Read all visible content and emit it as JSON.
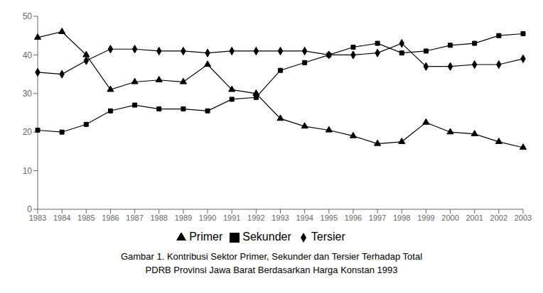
{
  "chart_data": {
    "type": "line",
    "title": "Gambar 1. Kontribusi Sektor Primer, Sekunder dan Tersier Terhadap Total",
    "subtitle": "PDRB Provinsi Jawa Barat Berdasarkan Harga Konstan 1993",
    "categories": [
      "1983",
      "1984",
      "1985",
      "1986",
      "1987",
      "1988",
      "1989",
      "1990",
      "1991",
      "1992",
      "1993",
      "1994",
      "1995",
      "1996",
      "1997",
      "1998",
      "1999",
      "2000",
      "2001",
      "2002",
      "2003"
    ],
    "series": [
      {
        "name": "Primer",
        "color": "#000000",
        "marker": "triangle",
        "values": [
          44.5,
          46.0,
          40.0,
          31.0,
          33.0,
          33.5,
          33.0,
          37.5,
          31.0,
          30.0,
          23.5,
          21.5,
          20.5,
          19.0,
          17.0,
          17.5,
          22.5,
          20.0,
          19.5,
          17.5,
          16.0
        ]
      },
      {
        "name": "Sekunder",
        "color": "#000000",
        "marker": "square",
        "values": [
          20.5,
          20.0,
          22.0,
          25.5,
          27.0,
          26.0,
          26.0,
          25.5,
          28.5,
          29.0,
          36.0,
          38.0,
          40.0,
          42.0,
          43.0,
          40.5,
          41.0,
          42.5,
          43.0,
          45.0,
          45.5
        ]
      },
      {
        "name": "Tersier",
        "color": "#000000",
        "marker": "diamond",
        "values": [
          35.5,
          35.0,
          38.5,
          41.5,
          41.5,
          41.0,
          41.0,
          40.5,
          41.0,
          41.0,
          41.0,
          41.0,
          40.0,
          40.0,
          40.5,
          43.0,
          37.0,
          37.0,
          37.5,
          37.5,
          39.0
        ]
      }
    ],
    "ylim": [
      0,
      50
    ],
    "yticks": [
      0,
      10,
      20,
      30,
      40,
      50
    ],
    "grid": false,
    "legend": "bottom"
  }
}
